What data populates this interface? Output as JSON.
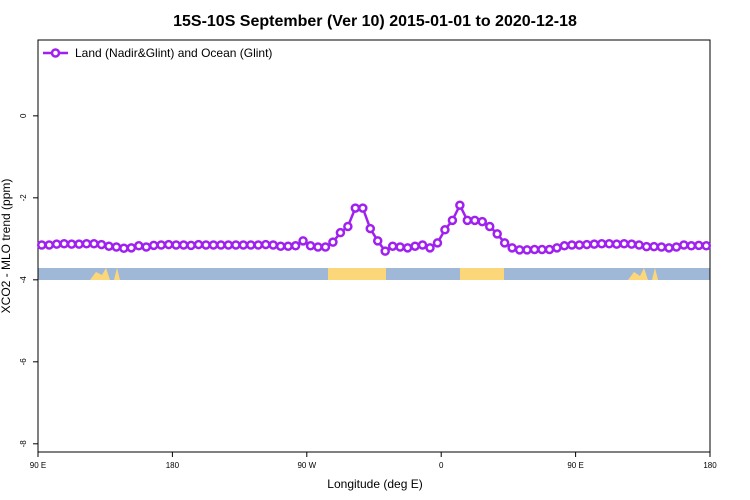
{
  "chart_data": {
    "type": "line",
    "title": "15S-10S September (Ver 10)   2015-01-01 to 2020-12-18",
    "x_label": "Longitude (deg E)",
    "y_label": "XCO2 - MLO trend (ppm)",
    "xlim": [
      90,
      540
    ],
    "ylim": [
      -8.2,
      1.85
    ],
    "xticks": [
      {
        "value": 90,
        "label": "90 E"
      },
      {
        "value": 180,
        "label": "180"
      },
      {
        "value": 270,
        "label": "90 W"
      },
      {
        "value": 360,
        "label": "0"
      },
      {
        "value": 450,
        "label": "90 E"
      },
      {
        "value": 540,
        "label": "180"
      }
    ],
    "yticks": [
      0,
      -2,
      -4,
      -6,
      -8
    ],
    "legend": "top-left",
    "x": [
      92.5,
      97.5,
      102.5,
      107.5,
      112.5,
      117.5,
      122.5,
      127.5,
      132.5,
      137.5,
      142.5,
      147.5,
      152.5,
      157.5,
      162.5,
      167.5,
      172.5,
      177.5,
      182.5,
      187.5,
      192.5,
      197.5,
      202.5,
      207.5,
      212.5,
      217.5,
      222.5,
      227.5,
      232.5,
      237.5,
      242.5,
      247.5,
      252.5,
      257.5,
      262.5,
      267.5,
      272.5,
      277.5,
      282.5,
      287.5,
      292.5,
      297.5,
      302.5,
      307.5,
      312.5,
      317.5,
      322.5,
      327.5,
      332.5,
      337.5,
      342.5,
      347.5,
      352.5,
      357.5,
      362.5,
      367.5,
      372.5,
      377.5,
      382.5,
      387.5,
      392.5,
      397.5,
      402.5,
      407.5,
      412.5,
      417.5,
      422.5,
      427.5,
      432.5,
      437.5,
      442.5,
      447.5,
      452.5,
      457.5,
      462.5,
      467.5,
      472.5,
      477.5,
      482.5,
      487.5,
      492.5,
      497.5,
      502.5,
      507.5,
      512.5,
      517.5,
      522.5,
      527.5,
      532.5,
      537.5
    ],
    "series": [
      {
        "name": "Land (Nadir&Glint) and Ocean (Glint)",
        "color": "#a020f0",
        "values": [
          -3.15,
          -3.15,
          -3.13,
          -3.12,
          -3.13,
          -3.13,
          -3.12,
          -3.12,
          -3.14,
          -3.18,
          -3.2,
          -3.23,
          -3.22,
          -3.17,
          -3.2,
          -3.16,
          -3.15,
          -3.14,
          -3.15,
          -3.15,
          -3.16,
          -3.14,
          -3.15,
          -3.15,
          -3.15,
          -3.15,
          -3.15,
          -3.15,
          -3.15,
          -3.15,
          -3.14,
          -3.15,
          -3.18,
          -3.18,
          -3.17,
          -3.05,
          -3.17,
          -3.2,
          -3.2,
          -3.08,
          -2.85,
          -2.7,
          -2.25,
          -2.25,
          -2.75,
          -3.05,
          -3.3,
          -3.18,
          -3.2,
          -3.22,
          -3.18,
          -3.15,
          -3.22,
          -3.1,
          -2.78,
          -2.55,
          -2.18,
          -2.55,
          -2.55,
          -2.58,
          -2.7,
          -2.88,
          -3.1,
          -3.22,
          -3.27,
          -3.27,
          -3.26,
          -3.26,
          -3.26,
          -3.22,
          -3.17,
          -3.15,
          -3.15,
          -3.14,
          -3.13,
          -3.12,
          -3.12,
          -3.13,
          -3.12,
          -3.13,
          -3.15,
          -3.19,
          -3.19,
          -3.2,
          -3.22,
          -3.2,
          -3.15,
          -3.17,
          -3.16,
          -3.17
        ]
      }
    ]
  }
}
